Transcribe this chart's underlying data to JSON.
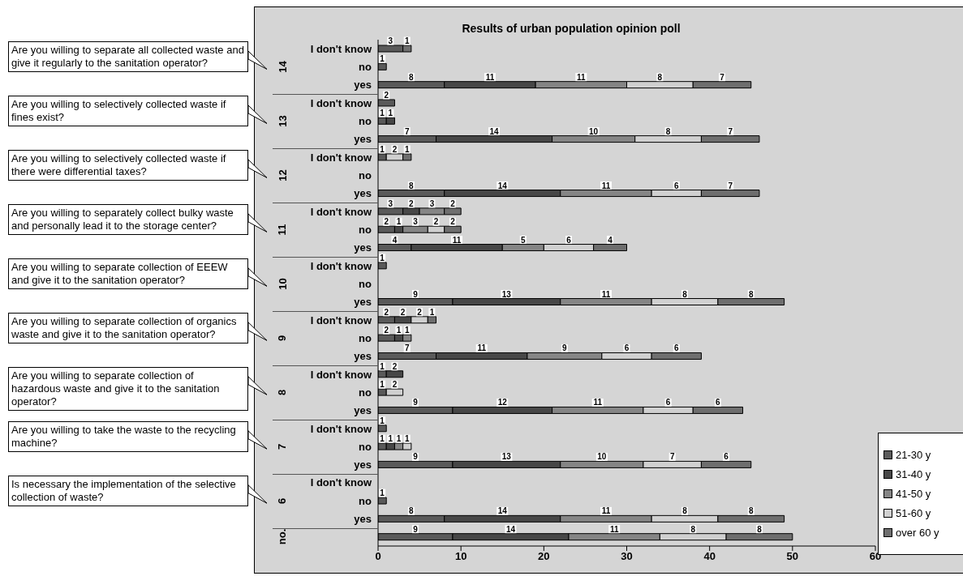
{
  "chart_data": {
    "type": "bar",
    "orientation": "horizontal",
    "stacked": true,
    "title": "Results of urban population opinion poll",
    "categories": [
      "I don't know",
      "no",
      "yes",
      "I don't know",
      "no",
      "yes",
      "I don't know",
      "no",
      "yes",
      "I don't know",
      "no",
      "yes",
      "I don't know",
      "no",
      "yes",
      "I don't know",
      "no",
      "yes",
      "I don't know",
      "no",
      "yes",
      "I don't know",
      "no",
      "yes",
      "I don't know",
      "no",
      "yes",
      null
    ],
    "series": [
      {
        "name": "21-30 y",
        "color": "#5a5a5a",
        "values": [
          3,
          1,
          8,
          2,
          1,
          7,
          1,
          null,
          8,
          3,
          2,
          4,
          1,
          null,
          9,
          2,
          2,
          7,
          1,
          1,
          9,
          1,
          1,
          9,
          null,
          1,
          8,
          9
        ]
      },
      {
        "name": "31-40 y",
        "color": "#474747",
        "values": [
          null,
          null,
          11,
          null,
          1,
          14,
          null,
          null,
          14,
          2,
          1,
          11,
          null,
          null,
          13,
          2,
          1,
          11,
          2,
          null,
          12,
          null,
          1,
          13,
          null,
          null,
          14,
          14
        ]
      },
      {
        "name": "41-50 y",
        "color": "#858585",
        "values": [
          null,
          null,
          11,
          null,
          null,
          10,
          null,
          null,
          11,
          3,
          3,
          5,
          null,
          null,
          11,
          null,
          1,
          9,
          null,
          null,
          11,
          null,
          1,
          10,
          null,
          null,
          11,
          11
        ]
      },
      {
        "name": "51-60 y",
        "color": "#d0d0d0",
        "values": [
          null,
          null,
          8,
          null,
          null,
          8,
          2,
          null,
          6,
          null,
          2,
          6,
          null,
          null,
          8,
          2,
          null,
          6,
          null,
          2,
          6,
          null,
          1,
          7,
          null,
          null,
          8,
          8
        ]
      },
      {
        "name": "over 60 y",
        "color": "#6e6e6e",
        "values": [
          1,
          null,
          7,
          null,
          null,
          7,
          1,
          null,
          7,
          2,
          2,
          4,
          null,
          null,
          8,
          1,
          null,
          6,
          null,
          null,
          6,
          null,
          null,
          6,
          null,
          null,
          8,
          8
        ]
      }
    ],
    "xlim": [
      0,
      60
    ],
    "xticks": [
      0,
      10,
      20,
      30,
      40,
      50,
      60
    ],
    "grid": false,
    "legend": "bottom right",
    "data_labels": true,
    "annotations": [
      "14",
      "13",
      "12",
      "11",
      "10",
      "9",
      "8",
      "7",
      "6",
      "no.",
      "Are you willing to separate all collected waste and give it regularly to the sanitation operator?",
      "Are you  willing to selectively collected waste if fines exist?",
      "Are you willing to selectively collected waste if there were differential taxes?",
      "Are you willing to separately collect bulky waste  and personally lead it to the storage center?",
      "Are you willing to separate collection of EEEW and give it to the sanitation operator?",
      "Are you willing to separate collection of organics waste and give it to the sanitation operator?",
      "Are you willing to separate collection of hazardous waste and give it to the sanitation operator?",
      "Are you willing to take the waste to the recycling machine?",
      "Is necessary the implementation of the selective collection of waste?"
    ]
  }
}
